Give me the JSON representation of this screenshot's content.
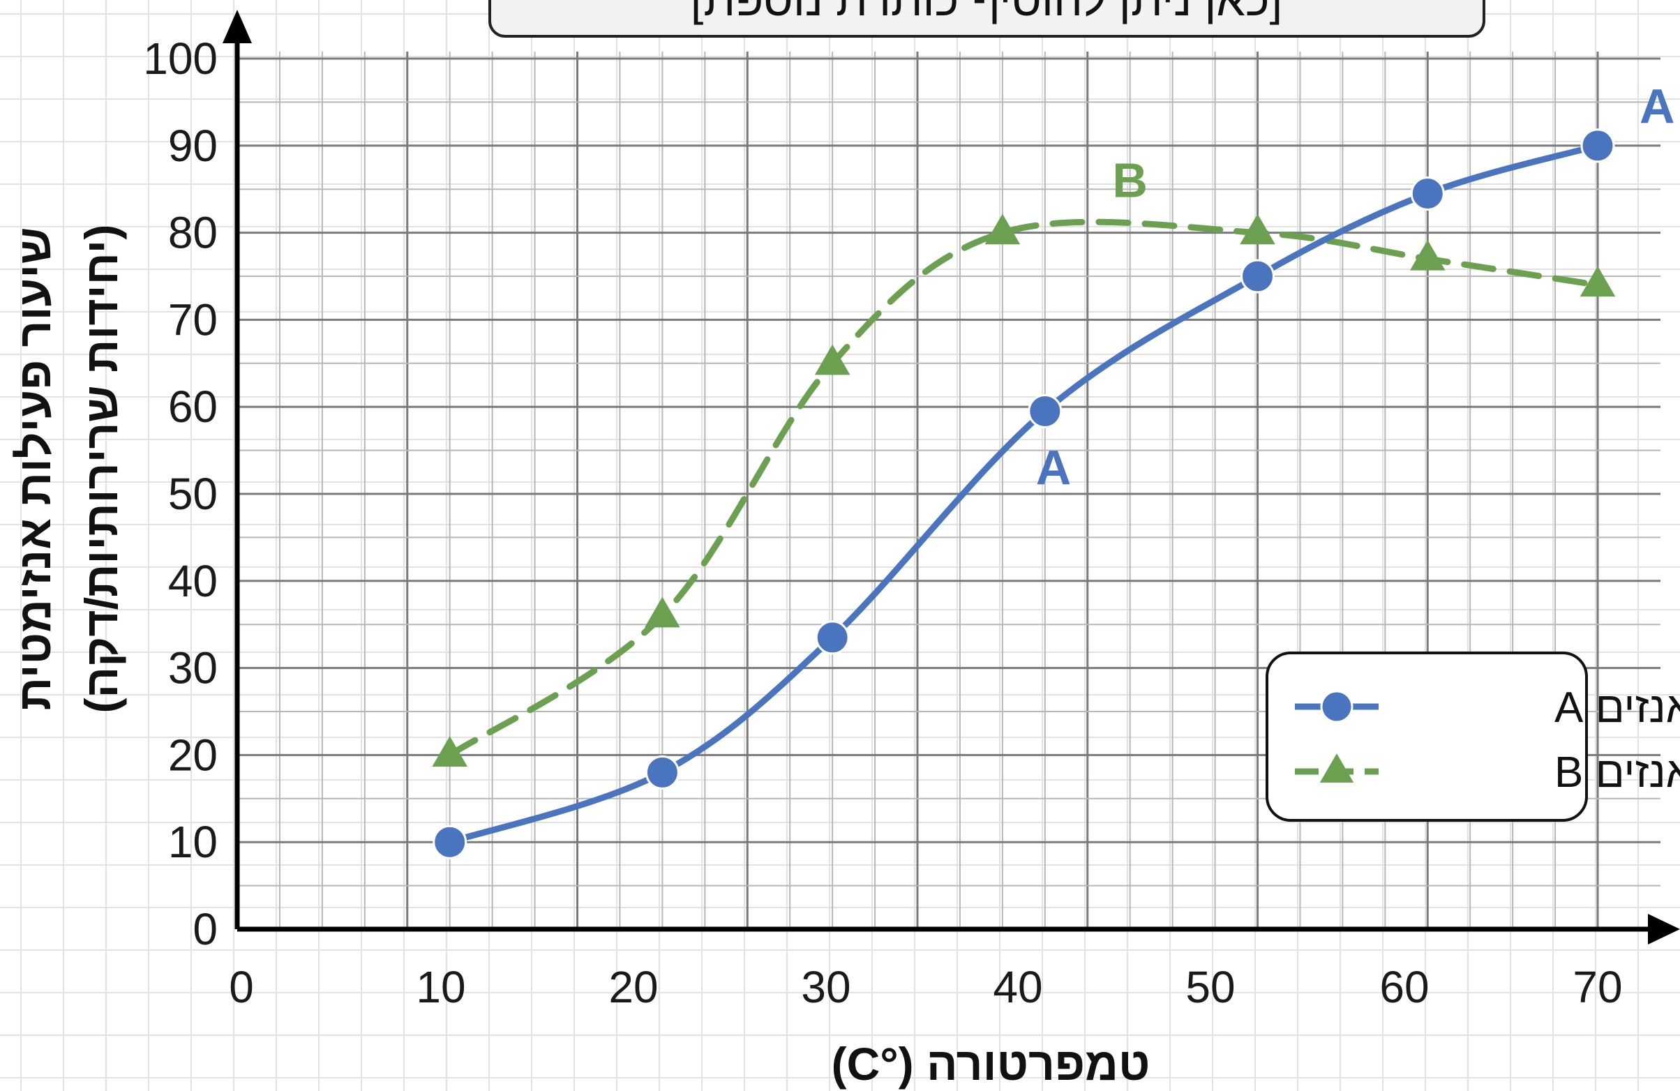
{
  "chart_data": {
    "type": "line",
    "title": "[כאן ניתן להוסיף כותרת נוספת]",
    "xlabel": "טמפרטורה (°C)",
    "ylabel": "שיעור פעילות אנזימטית",
    "ylabel_sub": "(יחידות שרירותיות/דקה)",
    "xlim": [
      0,
      70
    ],
    "ylim": [
      0,
      100
    ],
    "x_ticks": [
      "0",
      "10",
      "20",
      "30",
      "40",
      "50",
      "60",
      "70"
    ],
    "y_ticks": [
      "0",
      "10",
      "20",
      "30",
      "40",
      "50",
      "60",
      "70",
      "80",
      "90",
      "100"
    ],
    "grid": true,
    "legend_position": "bottom-right",
    "series": [
      {
        "name": "אנזים A",
        "color": "#4a74be",
        "line_style": "solid",
        "marker": "circle",
        "x": [
          12.5,
          25,
          35,
          47.5,
          60,
          70,
          80
        ],
        "y": [
          10,
          18,
          33.5,
          59.5,
          75,
          84.5,
          90
        ],
        "point_labels": [
          {
            "text": "A",
            "x": 48,
            "y": 53
          },
          {
            "text": "A",
            "x": 83.5,
            "y": 94.5
          }
        ]
      },
      {
        "name": "אנזים B",
        "color": "#6aa050",
        "line_style": "dashed",
        "marker": "triangle",
        "x": [
          12.5,
          25,
          35,
          45,
          60,
          70,
          80
        ],
        "y": [
          20,
          36,
          65,
          80,
          80,
          77,
          74
        ],
        "point_labels": [
          {
            "text": "B",
            "x": 52.5,
            "y": 86
          }
        ]
      }
    ]
  }
}
